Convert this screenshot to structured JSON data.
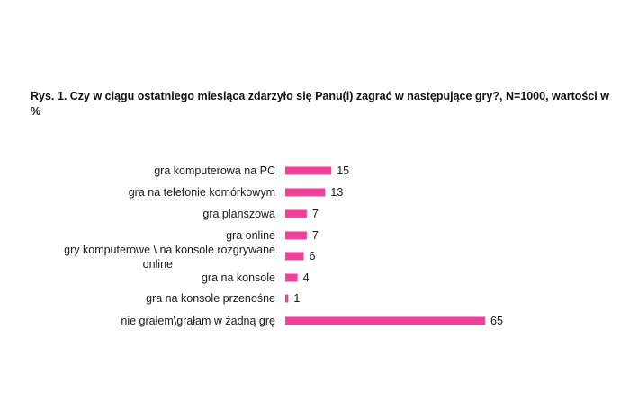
{
  "chart_data": {
    "type": "bar",
    "orientation": "horizontal",
    "title": "Rys. 1. Czy w ciągu ostatniego miesiąca zdarzyło się Panu(i) zagrać w następujące gry?, N=1000, wartości w %",
    "categories": [
      "gra komputerowa na PC",
      "gra na telefonie komórkowym",
      "gra planszowa",
      "gra online",
      "gry komputerowe \\ na konsole rozgrywane online",
      "gra na konsole",
      "gra na konsole przenośne",
      "nie grałem\\grałam w żadną grę"
    ],
    "values": [
      15,
      13,
      7,
      7,
      6,
      4,
      1,
      65
    ],
    "xlabel": "",
    "ylabel": "",
    "xlim": [
      0,
      65
    ],
    "grid": false,
    "legend": "none",
    "bar_color": "#f0419a"
  }
}
